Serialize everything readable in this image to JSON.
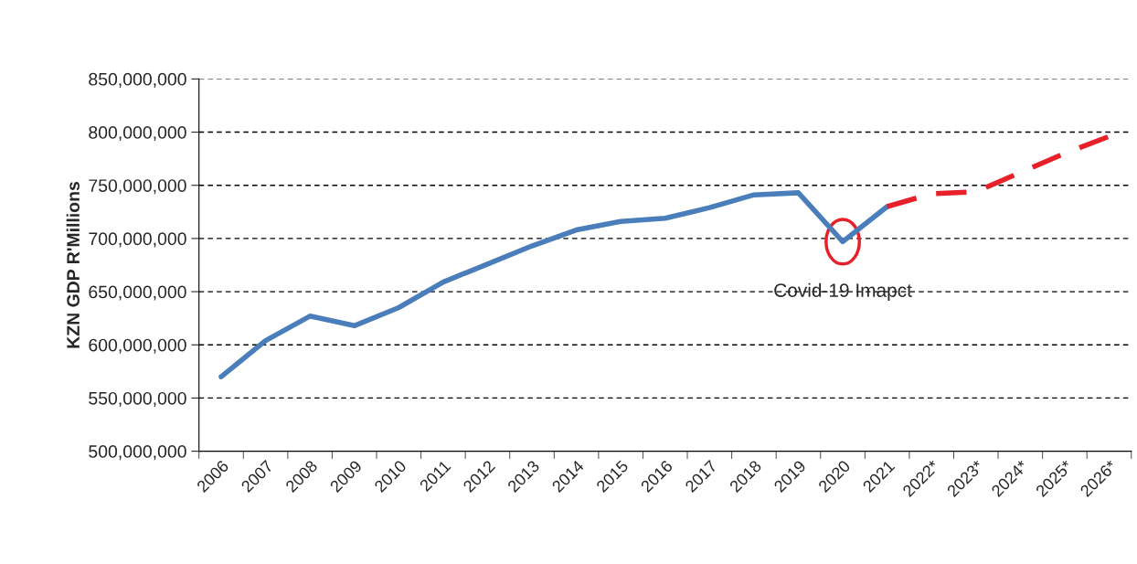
{
  "chart_data": {
    "type": "line",
    "ylabel": "KZN GDP R'Millions",
    "categories": [
      "2006",
      "2007",
      "2008",
      "2009",
      "2010",
      "2011",
      "2012",
      "2013",
      "2014",
      "2015",
      "2016",
      "2017",
      "2018",
      "2019",
      "2020",
      "2021",
      "2022*",
      "2023*",
      "2024*",
      "2025*",
      "2026*"
    ],
    "series": [
      {
        "color": "#4a7ebb",
        "line_style": "solid",
        "values": [
          570000000,
          604000000,
          627000000,
          618000000,
          635000000,
          659000000,
          676000000,
          693000000,
          708000000,
          716000000,
          719000000,
          729000000,
          741000000,
          743000000,
          697000000,
          730000000,
          null,
          null,
          null,
          null,
          null
        ]
      },
      {
        "color": "#e8202a",
        "line_style": "dashed",
        "values": [
          null,
          null,
          null,
          null,
          null,
          null,
          null,
          null,
          null,
          null,
          null,
          null,
          null,
          null,
          null,
          730000000,
          742000000,
          744000000,
          762000000,
          780000000,
          796000000
        ]
      }
    ],
    "ylim": [
      500000000,
      850000000
    ],
    "yticks": [
      {
        "value": 500000000,
        "label": "500,000,000"
      },
      {
        "value": 550000000,
        "label": "550,000,000"
      },
      {
        "value": 600000000,
        "label": "600,000,000"
      },
      {
        "value": 650000000,
        "label": "650,000,000"
      },
      {
        "value": 700000000,
        "label": "700,000,000"
      },
      {
        "value": 750000000,
        "label": "750,000,000"
      },
      {
        "value": 800000000,
        "label": "800,000,000"
      },
      {
        "value": 850000000,
        "label": "850,000,000"
      }
    ],
    "grid": "y",
    "legend": false,
    "marker": "none",
    "annotations": [
      {
        "text": "Covid-19 Imapct",
        "x": "2020",
        "y": 697000000
      }
    ]
  }
}
